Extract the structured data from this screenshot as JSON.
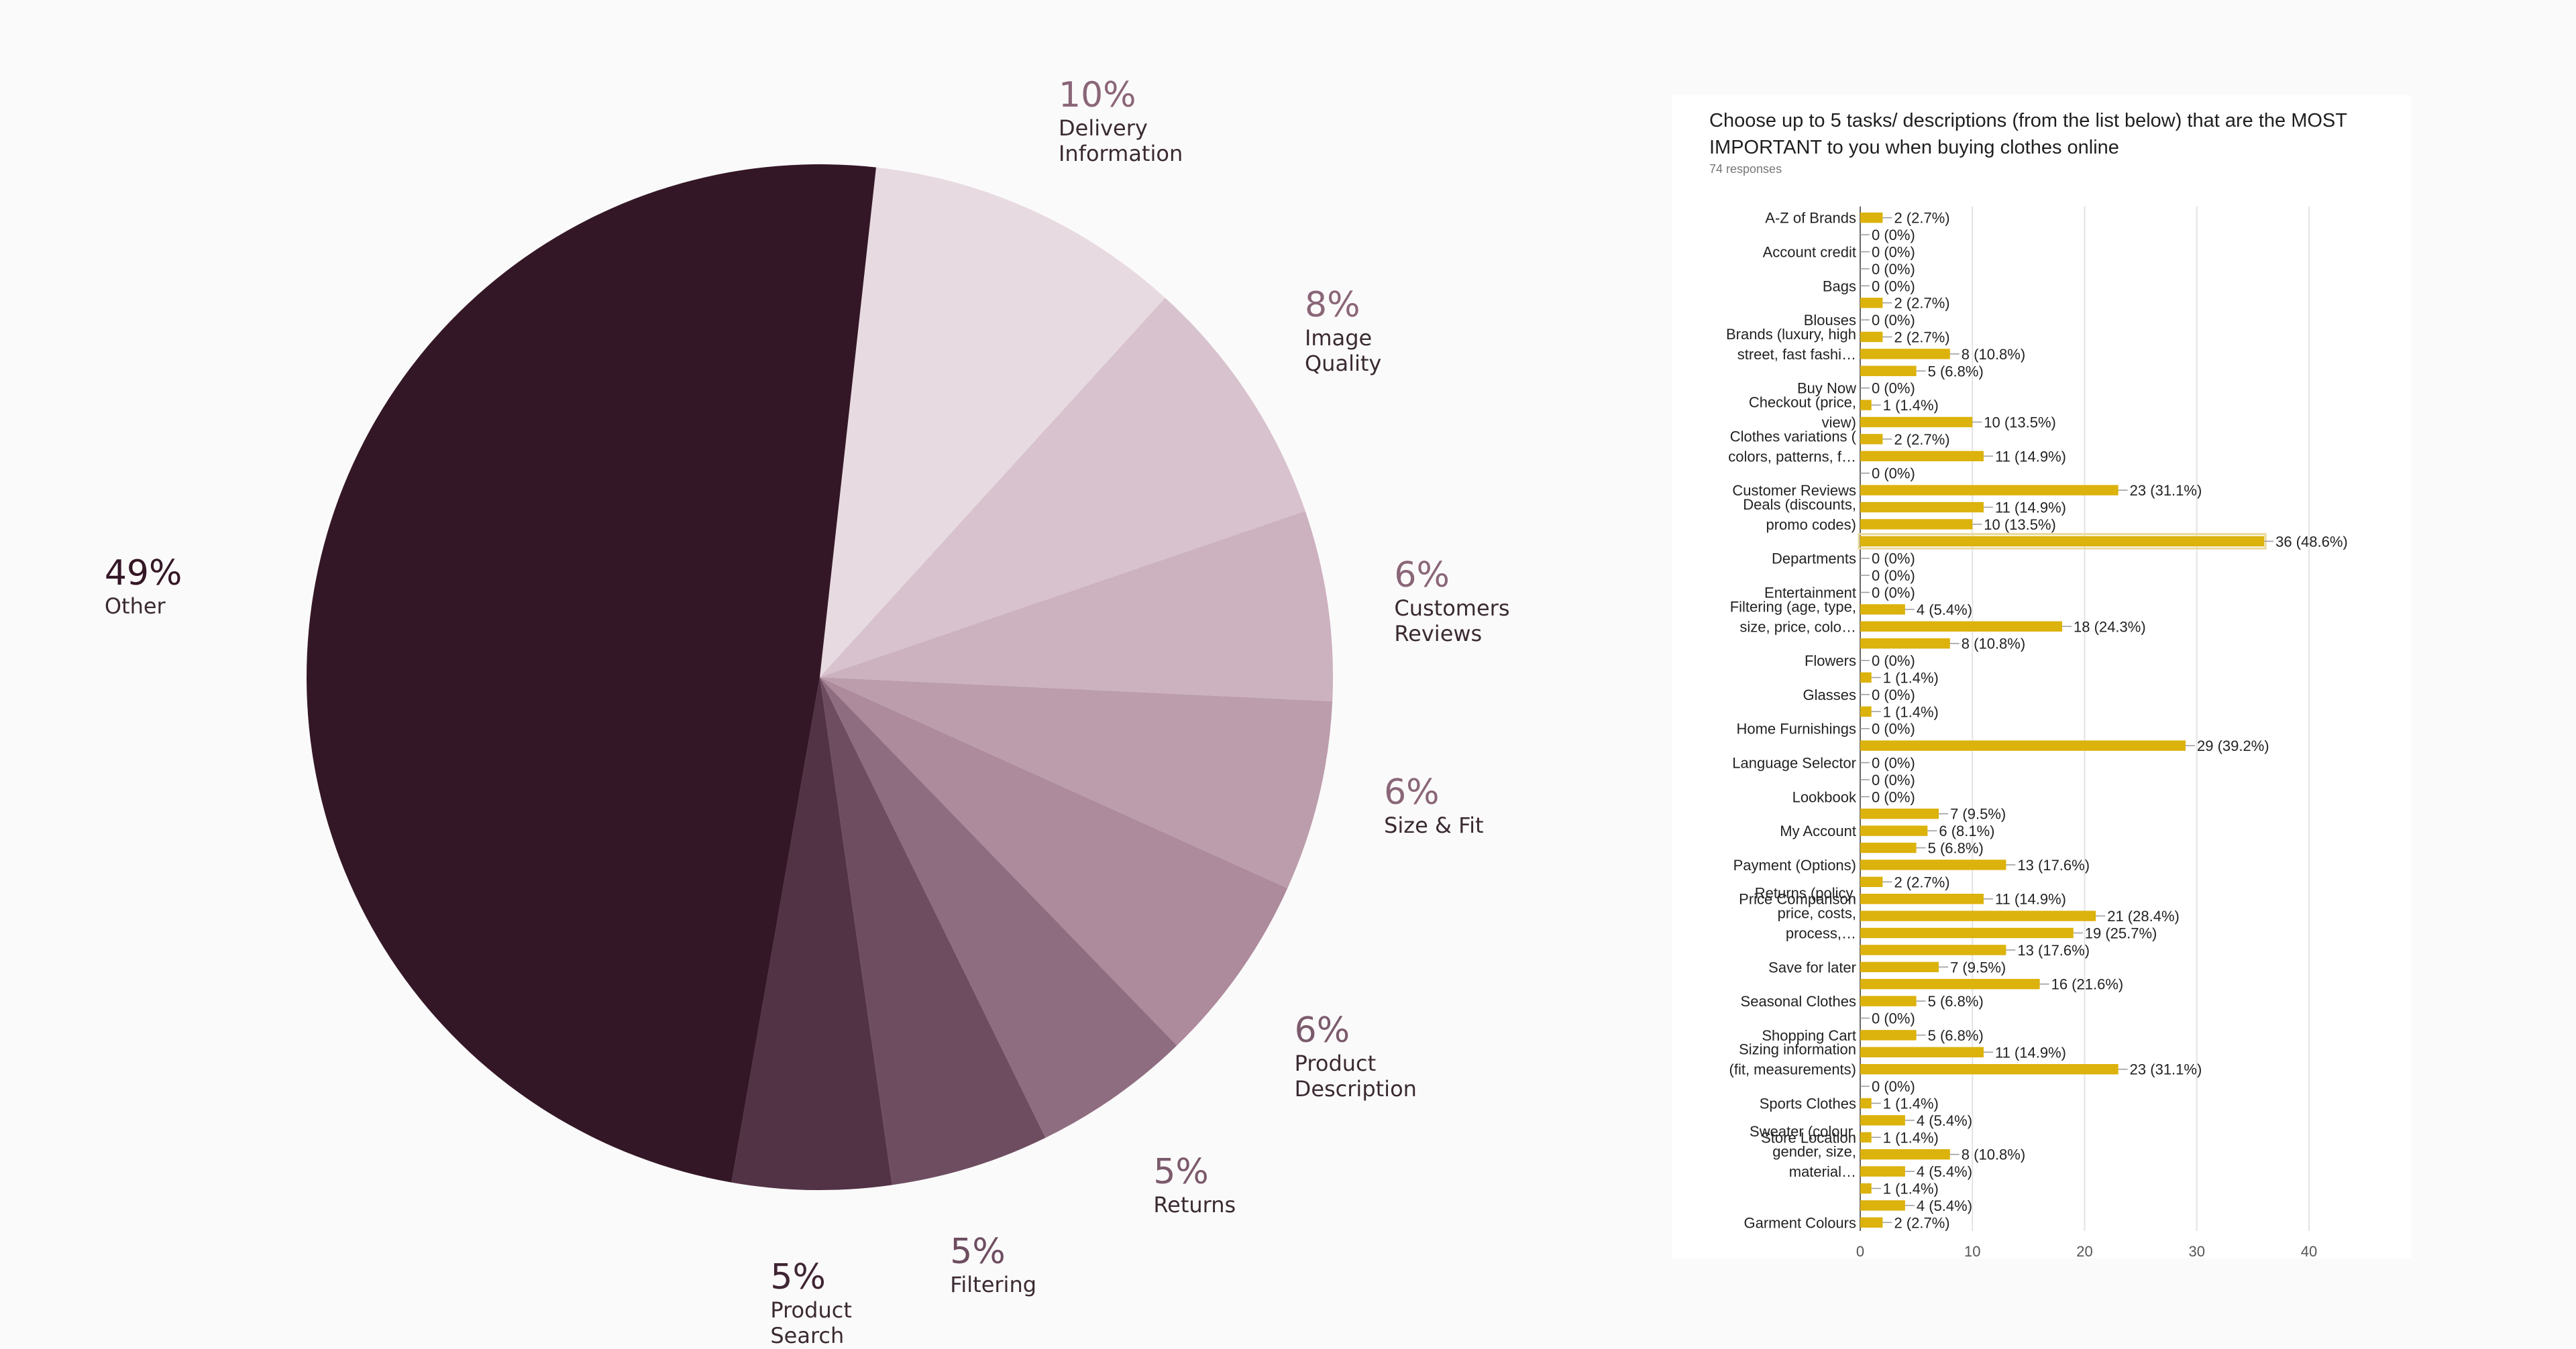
{
  "chart_data": [
    {
      "type": "pie",
      "slices": [
        {
          "label": "Delivery Information",
          "pct_label": "10%",
          "value": 10,
          "color": "#e8dae1",
          "pct_color": "#8a6678"
        },
        {
          "label": "Image Quality",
          "pct_label": "8%",
          "value": 8,
          "color": "#d7c2cd",
          "pct_color": "#8a6678"
        },
        {
          "label": "Customers Reviews",
          "pct_label": "6%",
          "value": 6,
          "color": "#ccb1bf",
          "pct_color": "#8a6678"
        },
        {
          "label": "Size & Fit",
          "pct_label": "6%",
          "value": 6,
          "color": "#bb9dab",
          "pct_color": "#8a6678"
        },
        {
          "label": "Product Description",
          "pct_label": "6%",
          "value": 6,
          "color": "#ad8a9c",
          "pct_color": "#7b5a6c"
        },
        {
          "label": "Returns",
          "pct_label": "5%",
          "value": 5,
          "color": "#8f6d80",
          "pct_color": "#7b5a6c"
        },
        {
          "label": "Filtering",
          "pct_label": "5%",
          "value": 5,
          "color": "#6e4d61",
          "pct_color": "#6e4d61"
        },
        {
          "label": "Product Search",
          "pct_label": "5%",
          "value": 5,
          "color": "#523245",
          "pct_color": "#3f2634"
        },
        {
          "label": "Other",
          "pct_label": "49%",
          "value": 49,
          "color": "#341726",
          "pct_color": "#341726"
        }
      ]
    },
    {
      "type": "bar",
      "orientation": "horizontal",
      "title": "Choose up to 5 tasks/ descriptions (from the list below) that are the MOST IMPORTANT to you when buying clothes online",
      "subtitle": "74 responses",
      "xlim": [
        0,
        40
      ],
      "xticks": [
        0,
        10,
        20,
        30,
        40
      ],
      "bar_color": "#dcb20c",
      "bars": [
        {
          "category": "A-Z of Brands",
          "value": 2,
          "label": "2 (2.7%)"
        },
        {
          "category": "",
          "value": 0,
          "label": "0 (0%)"
        },
        {
          "category": "Account credit",
          "value": 0,
          "label": "0 (0%)"
        },
        {
          "category": "",
          "value": 0,
          "label": "0 (0%)"
        },
        {
          "category": "Bags",
          "value": 0,
          "label": "0 (0%)"
        },
        {
          "category": "",
          "value": 2,
          "label": "2 (2.7%)"
        },
        {
          "category": "Blouses",
          "value": 0,
          "label": "0 (0%)"
        },
        {
          "category": "",
          "value": 2,
          "label": "2 (2.7%)"
        },
        {
          "category": "Brands (luxury, high street, fast fashi…",
          "value": 8,
          "label": "8 (10.8%)"
        },
        {
          "category": "",
          "value": 5,
          "label": "5 (6.8%)"
        },
        {
          "category": "Buy Now",
          "value": 0,
          "label": "0 (0%)"
        },
        {
          "category": "",
          "value": 1,
          "label": "1 (1.4%)"
        },
        {
          "category": "Checkout (price, view)",
          "value": 10,
          "label": "10 (13.5%)"
        },
        {
          "category": "",
          "value": 2,
          "label": "2 (2.7%)"
        },
        {
          "category": "Clothes variations ( colors, patterns, f…",
          "value": 11,
          "label": "11 (14.9%)"
        },
        {
          "category": "",
          "value": 0,
          "label": "0 (0%)"
        },
        {
          "category": "Customer Reviews",
          "value": 23,
          "label": "23 (31.1%)"
        },
        {
          "category": "",
          "value": 11,
          "label": "11 (14.9%)"
        },
        {
          "category": "Deals (discounts, promo codes)",
          "value": 10,
          "label": "10 (13.5%)"
        },
        {
          "category": "",
          "value": 36,
          "label": "36 (48.6%)"
        },
        {
          "category": "Departments",
          "value": 0,
          "label": "0 (0%)"
        },
        {
          "category": "",
          "value": 0,
          "label": "0 (0%)"
        },
        {
          "category": "Entertainment",
          "value": 0,
          "label": "0 (0%)"
        },
        {
          "category": "",
          "value": 4,
          "label": "4 (5.4%)"
        },
        {
          "category": "Filtering (age, type, size, price, colo…",
          "value": 18,
          "label": "18 (24.3%)"
        },
        {
          "category": "",
          "value": 8,
          "label": "8 (10.8%)"
        },
        {
          "category": "Flowers",
          "value": 0,
          "label": "0 (0%)"
        },
        {
          "category": "",
          "value": 1,
          "label": "1 (1.4%)"
        },
        {
          "category": "Glasses",
          "value": 0,
          "label": "0 (0%)"
        },
        {
          "category": "",
          "value": 1,
          "label": "1 (1.4%)"
        },
        {
          "category": "Home Furnishings",
          "value": 0,
          "label": "0 (0%)"
        },
        {
          "category": "",
          "value": 29,
          "label": "29 (39.2%)"
        },
        {
          "category": "Language Selector",
          "value": 0,
          "label": "0 (0%)"
        },
        {
          "category": "",
          "value": 0,
          "label": "0 (0%)"
        },
        {
          "category": "Lookbook",
          "value": 0,
          "label": "0 (0%)"
        },
        {
          "category": "",
          "value": 7,
          "label": "7 (9.5%)"
        },
        {
          "category": "My Account",
          "value": 6,
          "label": "6 (8.1%)"
        },
        {
          "category": "",
          "value": 5,
          "label": "5 (6.8%)"
        },
        {
          "category": "Payment (Options)",
          "value": 13,
          "label": "13 (17.6%)"
        },
        {
          "category": "",
          "value": 2,
          "label": "2 (2.7%)"
        },
        {
          "category": "Price Comparison",
          "value": 11,
          "label": "11 (14.9%)"
        },
        {
          "category": "",
          "value": 21,
          "label": "21 (28.4%)"
        },
        {
          "category": "Returns (policy, price, costs, process,…",
          "value": 19,
          "label": "19 (25.7%)"
        },
        {
          "category": "",
          "value": 13,
          "label": "13 (17.6%)"
        },
        {
          "category": "Save for later",
          "value": 7,
          "label": "7 (9.5%)"
        },
        {
          "category": "",
          "value": 16,
          "label": "16 (21.6%)"
        },
        {
          "category": "Seasonal Clothes",
          "value": 5,
          "label": "5 (6.8%)"
        },
        {
          "category": "",
          "value": 0,
          "label": "0 (0%)"
        },
        {
          "category": "Shopping Cart",
          "value": 5,
          "label": "5 (6.8%)"
        },
        {
          "category": "",
          "value": 11,
          "label": "11 (14.9%)"
        },
        {
          "category": "Sizing information (fit, measurements)",
          "value": 23,
          "label": "23 (31.1%)"
        },
        {
          "category": "",
          "value": 0,
          "label": "0 (0%)"
        },
        {
          "category": "Sports Clothes",
          "value": 1,
          "label": "1 (1.4%)"
        },
        {
          "category": "",
          "value": 4,
          "label": "4 (5.4%)"
        },
        {
          "category": "Store Location",
          "value": 1,
          "label": "1 (1.4%)"
        },
        {
          "category": "",
          "value": 8,
          "label": "8 (10.8%)"
        },
        {
          "category": "Sweater (colour, gender, size, material…",
          "value": 4,
          "label": "4 (5.4%)"
        },
        {
          "category": "",
          "value": 1,
          "label": "1 (1.4%)"
        },
        {
          "category": "",
          "value": 4,
          "label": "4 (5.4%)"
        },
        {
          "category": "Garment Colours",
          "value": 2,
          "label": "2 (2.7%)"
        }
      ]
    }
  ]
}
